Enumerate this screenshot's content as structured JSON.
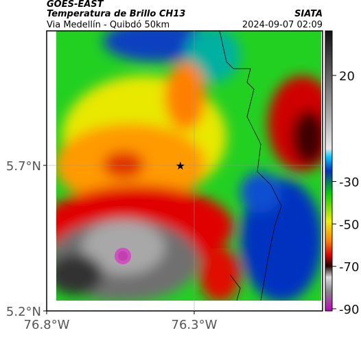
{
  "header": {
    "source": "GOES-EAST",
    "title": "Temperatura de Brillo CH13",
    "subtitle": "Via Medellín - Quibdó 50km",
    "credit": "SIATA",
    "timestamp": "2024-09-07 02:09"
  },
  "map": {
    "xlim": [
      -76.8,
      -75.865
    ],
    "ylim": [
      5.2,
      6.162
    ],
    "xticks": [
      {
        "value": -76.8,
        "label": "76.8°W"
      },
      {
        "value": -76.3,
        "label": "76.3°W"
      }
    ],
    "yticks": [
      {
        "value": 5.2,
        "label": "5.2°N"
      },
      {
        "value": 5.7,
        "label": "5.7°N"
      }
    ],
    "marker": {
      "lon": -76.347,
      "lat": 5.7
    }
  },
  "colorbar": {
    "lim": [
      -91,
      41
    ],
    "ticks": [
      20,
      -30,
      -50,
      -70,
      -90
    ]
  }
}
